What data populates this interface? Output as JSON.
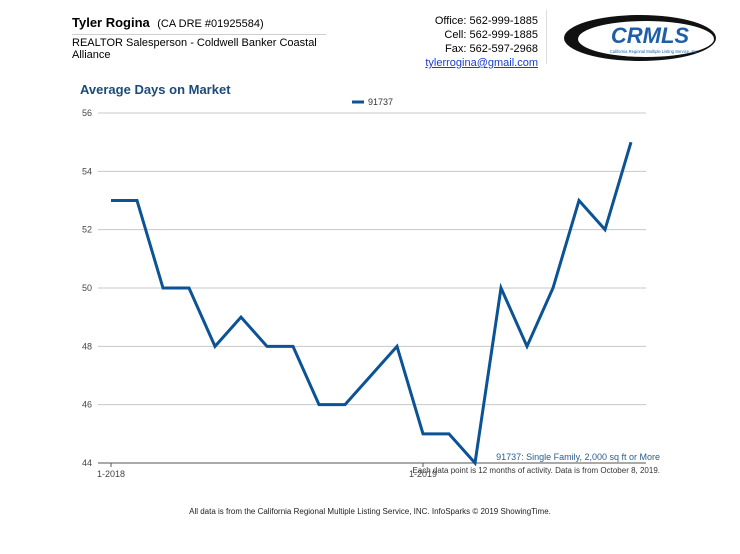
{
  "agent": {
    "name": "Tyler Rogina",
    "dre": "(CA DRE #01925584)",
    "title": "REALTOR Salesperson - Coldwell Banker Coastal Alliance"
  },
  "contact": {
    "office": "Office: 562-999-1885",
    "cell": "Cell: 562-999-1885",
    "fax": "Fax: 562-597-2968",
    "email": "tylerrogina@gmail.com"
  },
  "logo": {
    "brand": "CRMLS",
    "tagline": "California Regional Multiple Listing Service, Inc."
  },
  "colors": {
    "series": "#0b5394",
    "title": "#1c4a7a",
    "grid": "#c8c8c8"
  },
  "chart_data": {
    "type": "line",
    "title": "Average Days on Market",
    "legend_position": "top-center",
    "series": [
      {
        "name": "91737",
        "values": [
          53,
          53,
          50,
          50,
          48,
          49,
          48,
          48,
          46,
          46,
          47,
          48,
          45,
          45,
          44,
          50,
          48,
          50,
          53,
          52,
          55
        ]
      }
    ],
    "x_index_labels": [
      {
        "index": 0,
        "label": "1-2018"
      },
      {
        "index": 12,
        "label": "1-2019"
      }
    ],
    "ylim": [
      44,
      56
    ],
    "yticks": [
      44,
      46,
      48,
      50,
      52,
      54,
      56
    ],
    "grid": true
  },
  "footnotes": {
    "series_note": "91737: Single Family, 2,000 sq ft or More",
    "activity_note": "Each data point is 12 months of activity. Data is from October 8, 2019.",
    "source_note": "All data is from the California Regional Multiple Listing Service, INC. InfoSparks © 2019 ShowingTime."
  }
}
